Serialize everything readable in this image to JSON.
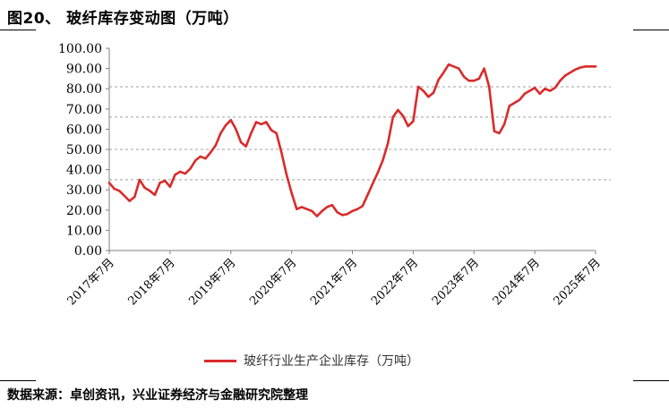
{
  "figure": {
    "title": "图20、 玻纤库存变动图（万吨）",
    "source": "数据来源：卓创资讯，兴业证券经济与金融研究院整理"
  },
  "chart_data": {
    "type": "line",
    "title": "图20、 玻纤库存变动图（万吨）",
    "xlabel": "",
    "ylabel": "",
    "ylim": [
      0,
      100
    ],
    "yticks": [
      "0.00",
      "10.00",
      "20.00",
      "30.00",
      "40.00",
      "50.00",
      "60.00",
      "70.00",
      "80.00",
      "90.00",
      "100.00"
    ],
    "x_tick_labels": [
      "2017年7月",
      "2018年7月",
      "2019年7月",
      "2020年7月",
      "2021年7月",
      "2022年7月",
      "2023年7月",
      "2024年7月",
      "2025年7月"
    ],
    "dashed_reference_lines": [
      81,
      66,
      50,
      35
    ],
    "legend_position": "bottom",
    "colors": {
      "series": "#D92B2B",
      "axis": "#808080",
      "reference": "#A0A0A0"
    },
    "series": [
      {
        "name": "玻纤行业生产企业库存（万吨）",
        "x": [
          "2017-07",
          "2017-08",
          "2017-09",
          "2017-10",
          "2017-11",
          "2017-12",
          "2018-01",
          "2018-02",
          "2018-03",
          "2018-04",
          "2018-05",
          "2018-06",
          "2018-07",
          "2018-08",
          "2018-09",
          "2018-10",
          "2018-11",
          "2018-12",
          "2019-01",
          "2019-02",
          "2019-03",
          "2019-04",
          "2019-05",
          "2019-06",
          "2019-07",
          "2019-08",
          "2019-09",
          "2019-10",
          "2019-11",
          "2019-12",
          "2020-01",
          "2020-02",
          "2020-03",
          "2020-04",
          "2020-05",
          "2020-06",
          "2020-07",
          "2020-08",
          "2020-09",
          "2020-10",
          "2020-11",
          "2020-12",
          "2021-01",
          "2021-02",
          "2021-03",
          "2021-04",
          "2021-05",
          "2021-06",
          "2021-07",
          "2021-08",
          "2021-09",
          "2021-10",
          "2021-11",
          "2021-12",
          "2022-01",
          "2022-02",
          "2022-03",
          "2022-04",
          "2022-05",
          "2022-06",
          "2022-07",
          "2022-08",
          "2022-09",
          "2022-10",
          "2022-11",
          "2022-12",
          "2023-01",
          "2023-02",
          "2023-03",
          "2023-04",
          "2023-05",
          "2023-06",
          "2023-07",
          "2023-08",
          "2023-09",
          "2023-10",
          "2023-11",
          "2023-12",
          "2024-01",
          "2024-02",
          "2024-03",
          "2024-04",
          "2024-05",
          "2024-06",
          "2024-07",
          "2024-08",
          "2024-09",
          "2024-10",
          "2024-11",
          "2024-12",
          "2025-01",
          "2025-02",
          "2025-03",
          "2025-04",
          "2025-05",
          "2025-06",
          "2025-07"
        ],
        "values": [
          33.5,
          30.5,
          29.5,
          27.0,
          24.5,
          26.5,
          35.0,
          31.0,
          29.5,
          27.5,
          33.5,
          34.5,
          31.5,
          37.5,
          39.0,
          38.0,
          40.5,
          44.5,
          46.5,
          45.5,
          48.5,
          52.0,
          58.0,
          62.0,
          64.5,
          60.0,
          53.5,
          51.5,
          58.0,
          63.5,
          62.5,
          63.5,
          59.5,
          58.0,
          48.5,
          37.5,
          28.5,
          20.5,
          21.5,
          20.5,
          19.5,
          17.0,
          19.5,
          21.5,
          22.5,
          19.0,
          17.5,
          18.0,
          19.5,
          20.5,
          22.0,
          27.5,
          33.0,
          38.5,
          44.5,
          53.0,
          66.0,
          69.5,
          66.5,
          61.5,
          64.0,
          81.0,
          79.0,
          76.0,
          78.0,
          84.5,
          88.0,
          92.0,
          91.0,
          90.0,
          86.0,
          84.0,
          84.0,
          85.0,
          90.0,
          81.0,
          59.0,
          58.0,
          62.5,
          71.5,
          73.0,
          74.5,
          77.5,
          79.0,
          80.5,
          77.5,
          80.0,
          79.0,
          80.5,
          84.0,
          86.5,
          88.0,
          89.5,
          90.5,
          91.0,
          91.0,
          91.0
        ]
      }
    ]
  }
}
